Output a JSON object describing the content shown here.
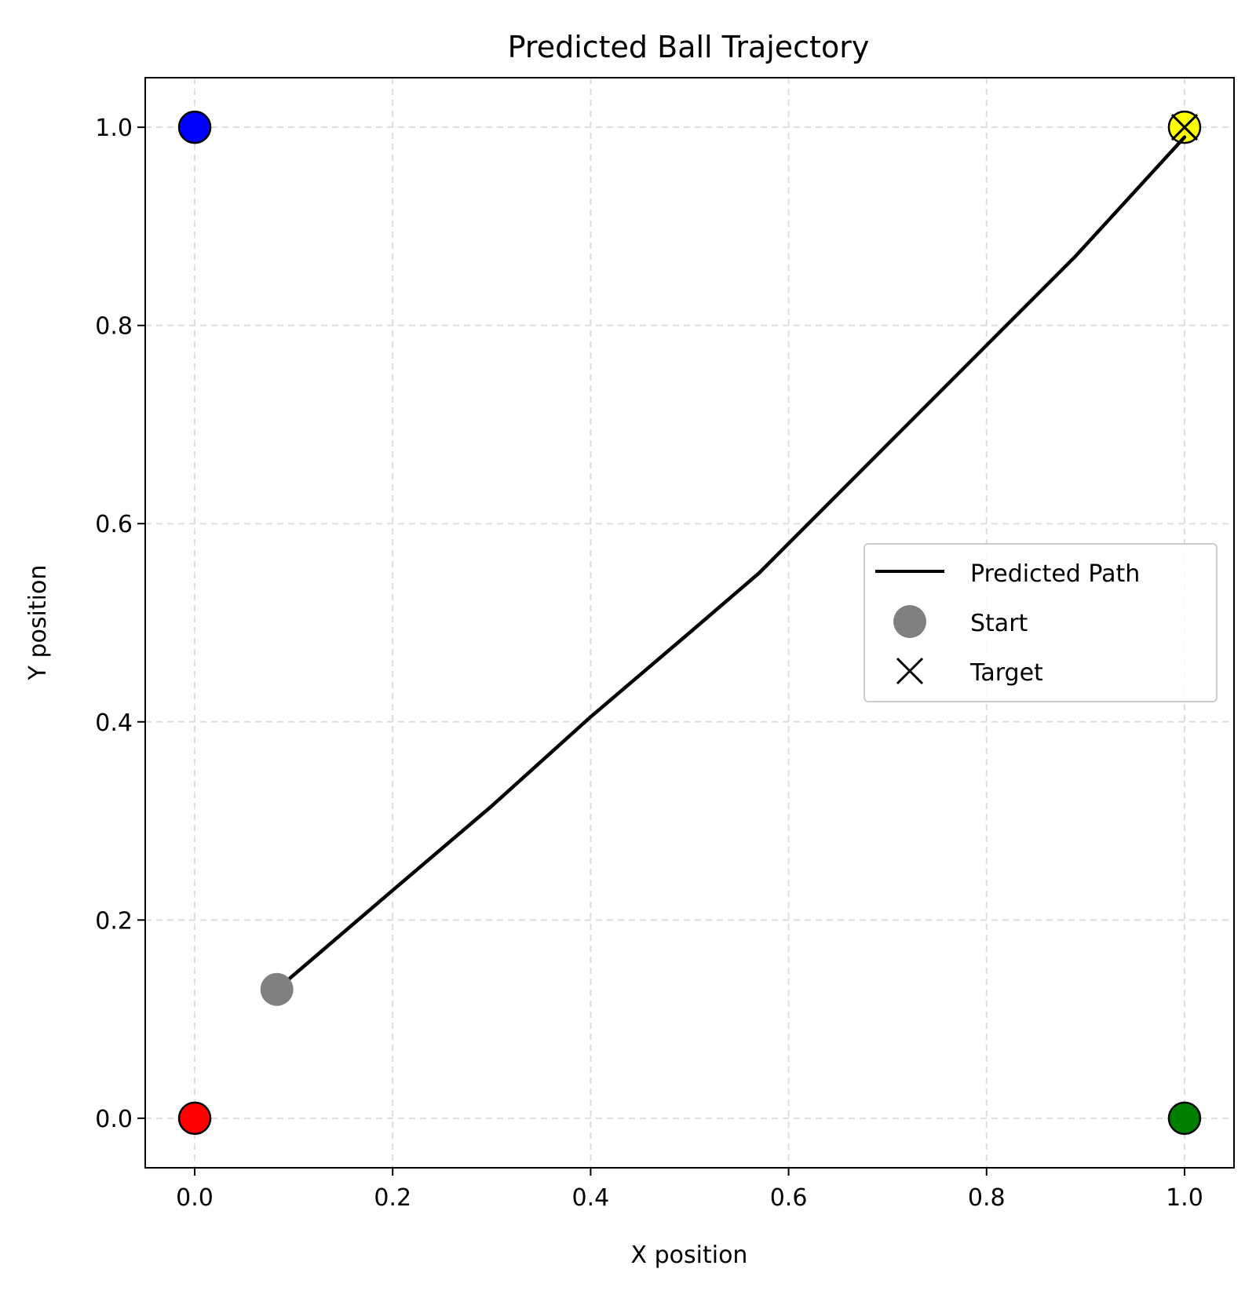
{
  "chart_data": {
    "type": "scatter",
    "title": "Predicted Ball Trajectory",
    "xlabel": "X position",
    "ylabel": "Y position",
    "xlim": [
      -0.05,
      1.05
    ],
    "ylim": [
      -0.05,
      1.05
    ],
    "xticks": [
      "0.0",
      "0.2",
      "0.4",
      "0.6",
      "0.8",
      "1.0"
    ],
    "yticks": [
      "0.0",
      "0.2",
      "0.4",
      "0.6",
      "0.8",
      "1.0"
    ],
    "xtick_values": [
      0.0,
      0.2,
      0.4,
      0.6,
      0.8,
      1.0
    ],
    "ytick_values": [
      0.0,
      0.2,
      0.4,
      0.6,
      0.8,
      1.0
    ],
    "grid": true,
    "legend_position": "center-right",
    "corner_points": [
      {
        "x": 0.0,
        "y": 1.0,
        "color": "#0000ff"
      },
      {
        "x": 1.0,
        "y": 1.0,
        "color": "#ffff00"
      },
      {
        "x": 0.0,
        "y": 0.0,
        "color": "#ff0000"
      },
      {
        "x": 1.0,
        "y": 0.0,
        "color": "#008000"
      }
    ],
    "series": [
      {
        "name": "Predicted Path",
        "kind": "line",
        "color": "#000000",
        "points": [
          [
            0.083,
            0.13
          ],
          [
            0.2,
            0.23
          ],
          [
            0.3,
            0.315
          ],
          [
            0.4,
            0.405
          ],
          [
            0.5,
            0.49
          ],
          [
            0.57,
            0.55
          ],
          [
            0.67,
            0.65
          ],
          [
            0.78,
            0.76
          ],
          [
            0.89,
            0.87
          ],
          [
            1.0,
            0.99
          ]
        ]
      },
      {
        "name": "Start",
        "kind": "marker",
        "marker": "circle",
        "color": "#808080",
        "x": 0.083,
        "y": 0.13
      },
      {
        "name": "Target",
        "kind": "marker",
        "marker": "x",
        "color": "#000000",
        "x": 1.0,
        "y": 1.0
      }
    ]
  }
}
